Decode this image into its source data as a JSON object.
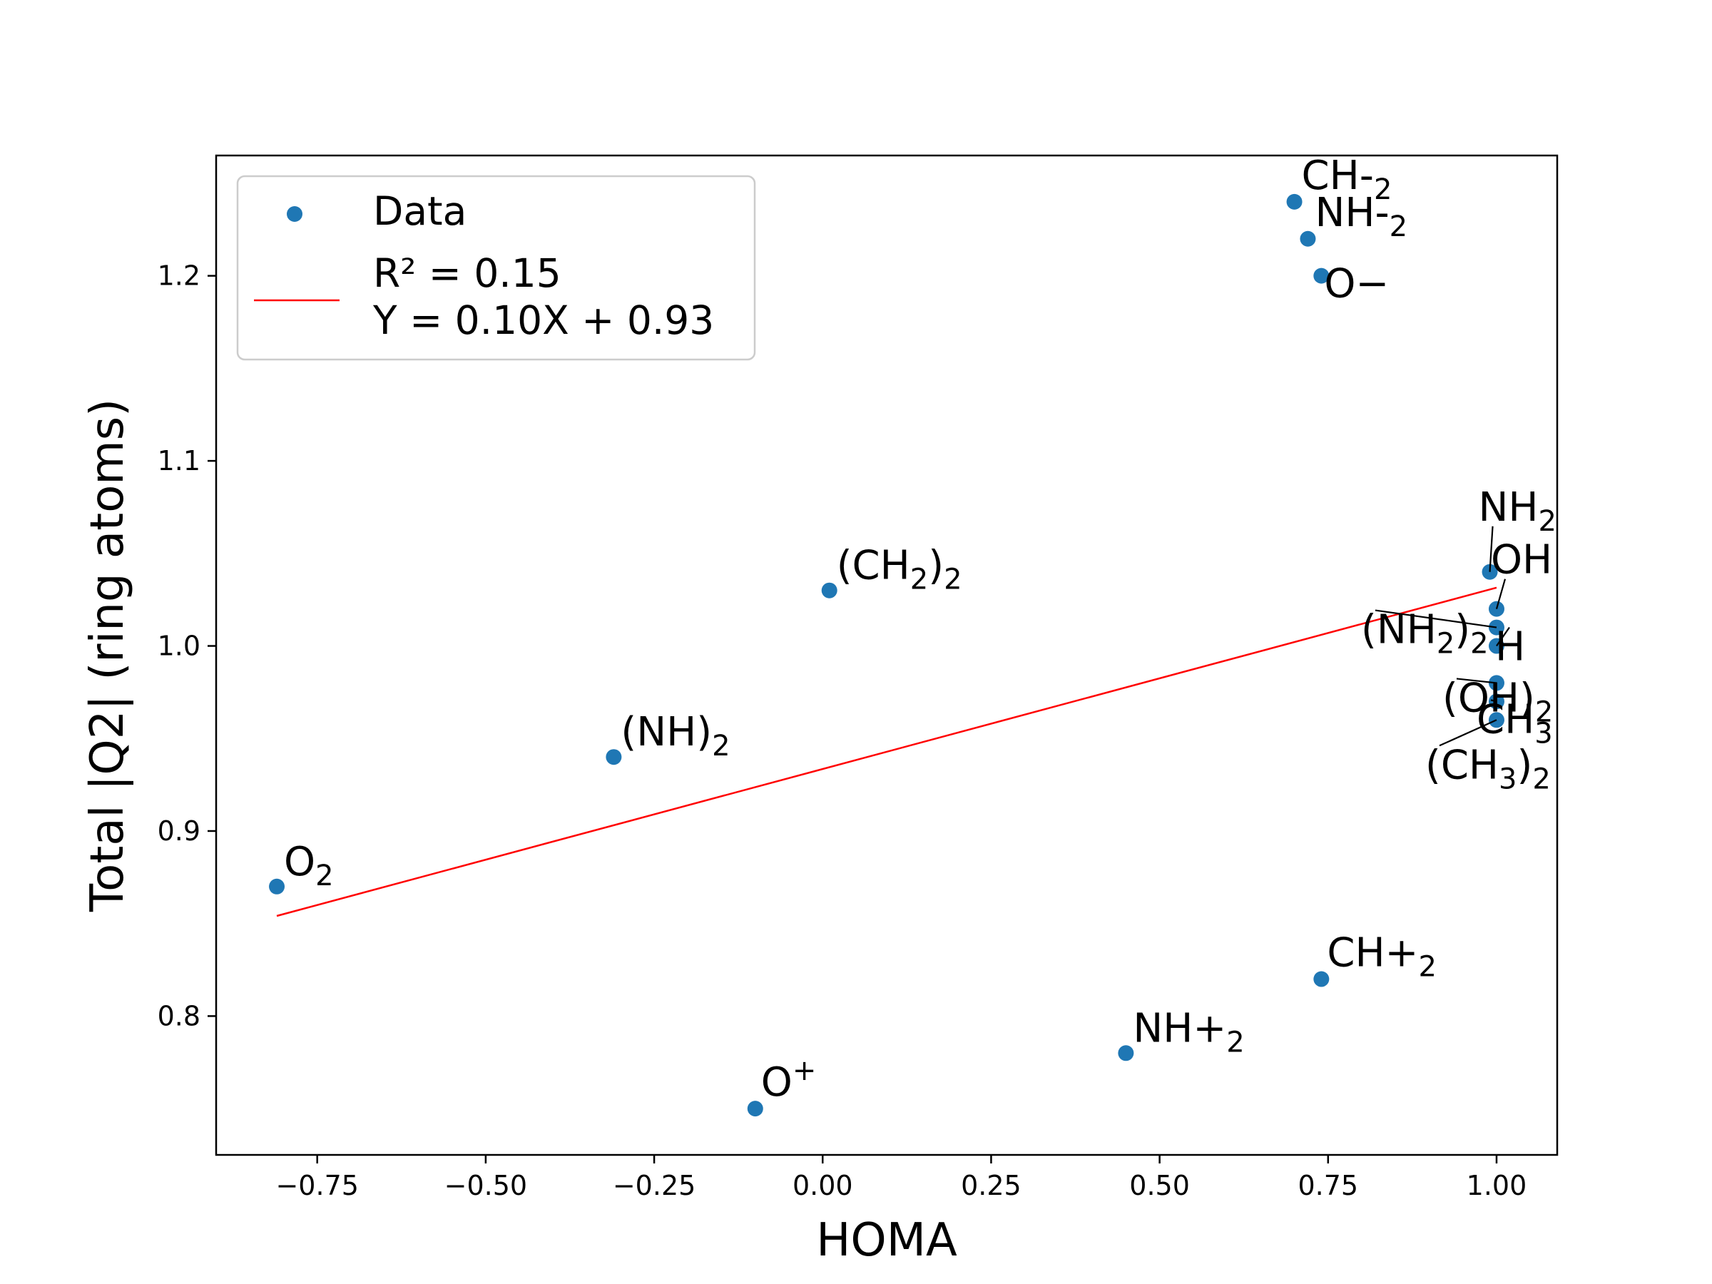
{
  "chart_data": {
    "type": "scatter",
    "xlabel": "HOMA",
    "ylabel": "Total |Q2| (ring atoms)",
    "xlim": [
      -0.9,
      1.09
    ],
    "ylim": [
      0.725,
      1.265
    ],
    "xticks": [
      -0.75,
      -0.5,
      -0.25,
      0.0,
      0.25,
      0.5,
      0.75,
      1.0
    ],
    "xtick_labels": [
      "−0.75",
      "−0.50",
      "−0.25",
      "0.00",
      "0.25",
      "0.50",
      "0.75",
      "1.00"
    ],
    "yticks": [
      0.8,
      0.9,
      1.0,
      1.1,
      1.2
    ],
    "ytick_labels": [
      "0.8",
      "0.9",
      "1.0",
      "1.1",
      "1.2"
    ],
    "grid": false,
    "legend_position": "top-left",
    "colors": {
      "points": "#1f77b4",
      "fit_line": "#ff0000"
    },
    "series": [
      {
        "name": "Data",
        "points": [
          {
            "x": 0.7,
            "y": 1.24,
            "label": "CH-",
            "sub": "2",
            "suffix": ""
          },
          {
            "x": 0.72,
            "y": 1.22,
            "label": "NH-",
            "sub": "2",
            "suffix": ""
          },
          {
            "x": 0.74,
            "y": 1.2,
            "label": "O−",
            "sub": "",
            "suffix": ""
          },
          {
            "x": 0.01,
            "y": 1.03,
            "label": "(CH",
            "sub": "2",
            "suffix": ")2"
          },
          {
            "x": -0.31,
            "y": 0.94,
            "label": "(NH)",
            "sub": "2",
            "suffix": ""
          },
          {
            "x": -0.81,
            "y": 0.87,
            "label": "O",
            "sub": "2",
            "suffix": ""
          },
          {
            "x": -0.1,
            "y": 0.75,
            "label": "O",
            "sup": "+",
            "sub": "",
            "suffix": ""
          },
          {
            "x": 0.45,
            "y": 0.78,
            "label": "NH+",
            "sub": "2",
            "suffix": ""
          },
          {
            "x": 0.74,
            "y": 0.82,
            "label": "CH+",
            "sub": "2",
            "suffix": ""
          },
          {
            "x": 0.99,
            "y": 1.04,
            "label": "NH",
            "sub": "2",
            "suffix": ""
          },
          {
            "x": 1.0,
            "y": 1.02,
            "label": "OH",
            "sub": "",
            "suffix": ""
          },
          {
            "x": 1.0,
            "y": 1.01,
            "label": "(NH",
            "sub": "2",
            "suffix": ")2"
          },
          {
            "x": 1.0,
            "y": 1.0,
            "label": "H",
            "sub": "",
            "suffix": ""
          },
          {
            "x": 1.0,
            "y": 0.98,
            "label": "(OH)",
            "sub": "2",
            "suffix": ""
          },
          {
            "x": 1.0,
            "y": 0.97,
            "label": "CH",
            "sub": "3",
            "suffix": ""
          },
          {
            "x": 1.0,
            "y": 0.96,
            "label": "(CH",
            "sub": "3",
            "suffix": ")2"
          }
        ]
      }
    ],
    "fit": {
      "r2_label": "R² = 0.15",
      "equation_label": "Y = 0.10X + 0.93",
      "slope": 0.098,
      "intercept": 0.9335,
      "x_range": [
        -0.81,
        1.0
      ]
    }
  }
}
